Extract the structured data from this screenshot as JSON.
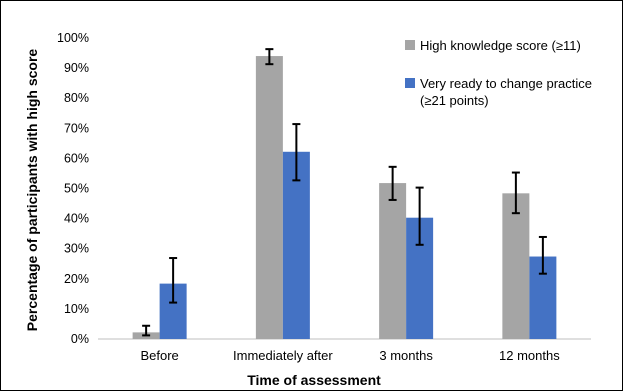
{
  "chart_data": {
    "type": "bar",
    "title": "",
    "xlabel": "Time of assessment",
    "ylabel": "Percentage of participants with high score",
    "categories": [
      "Before",
      "Immediately after",
      "3 months",
      "12 months"
    ],
    "ylim": [
      0,
      100
    ],
    "yticks": [
      "0%",
      "10%",
      "20%",
      "30%",
      "40%",
      "50%",
      "60%",
      "70%",
      "80%",
      "90%",
      "100%"
    ],
    "grid": false,
    "legend_position": "top-right",
    "error_bars": true,
    "series": [
      {
        "name": "High knowledge score (≥11)",
        "color": "#a5a5a5",
        "values": [
          2.2,
          94,
          51.8,
          48.4
        ],
        "err_low": [
          1.2,
          91.3,
          46.2,
          41.8
        ],
        "err_high": [
          4.4,
          96.3,
          57.2,
          55.3
        ]
      },
      {
        "name": "Very ready to change practice (≥21 points)",
        "legend_lines": [
          "Very ready to change practice",
          "(≥21 points)"
        ],
        "color": "#4472c4",
        "values": [
          18.4,
          62.2,
          40.3,
          27.4
        ],
        "err_low": [
          12.1,
          52.7,
          31.3,
          21.7
        ],
        "err_high": [
          26.9,
          71.4,
          50.3,
          33.9
        ]
      }
    ]
  }
}
